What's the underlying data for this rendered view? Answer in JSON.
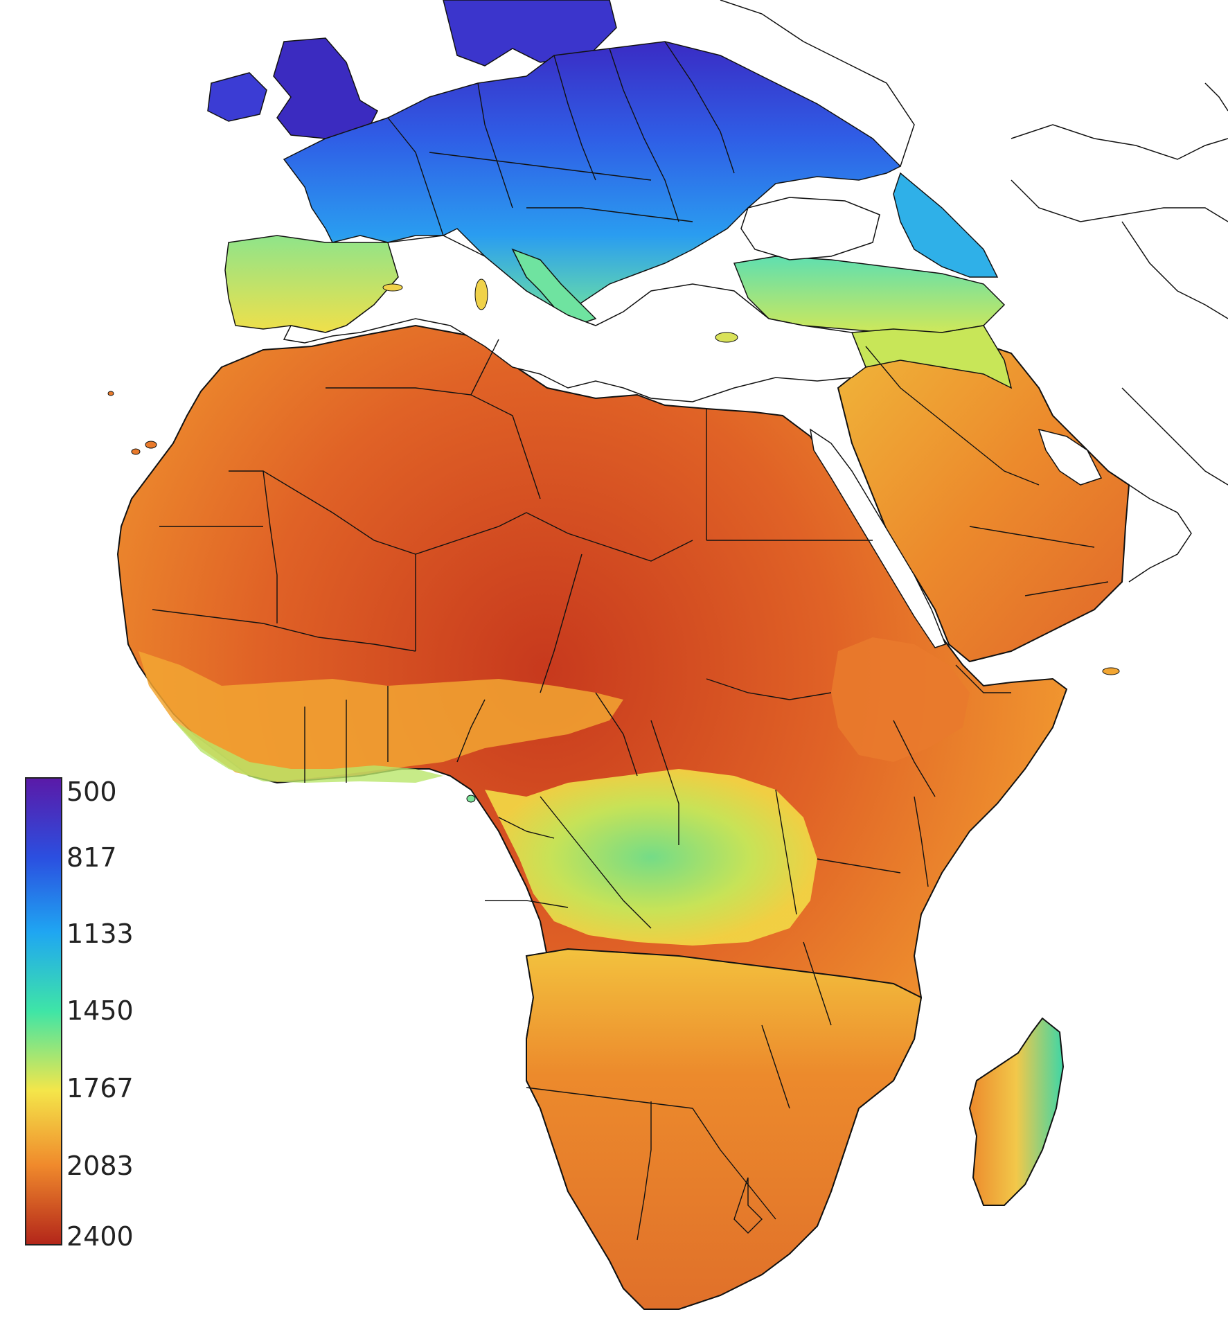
{
  "map": {
    "legend": {
      "ticks": [
        "500",
        "817",
        "1133",
        "1450",
        "1767",
        "2083",
        "2400"
      ],
      "colormap": [
        "#5a1aa8",
        "#2b4fe0",
        "#1fa6f2",
        "#3fe5a6",
        "#f4e64a",
        "#f08a2c",
        "#b3261a"
      ]
    }
  }
}
